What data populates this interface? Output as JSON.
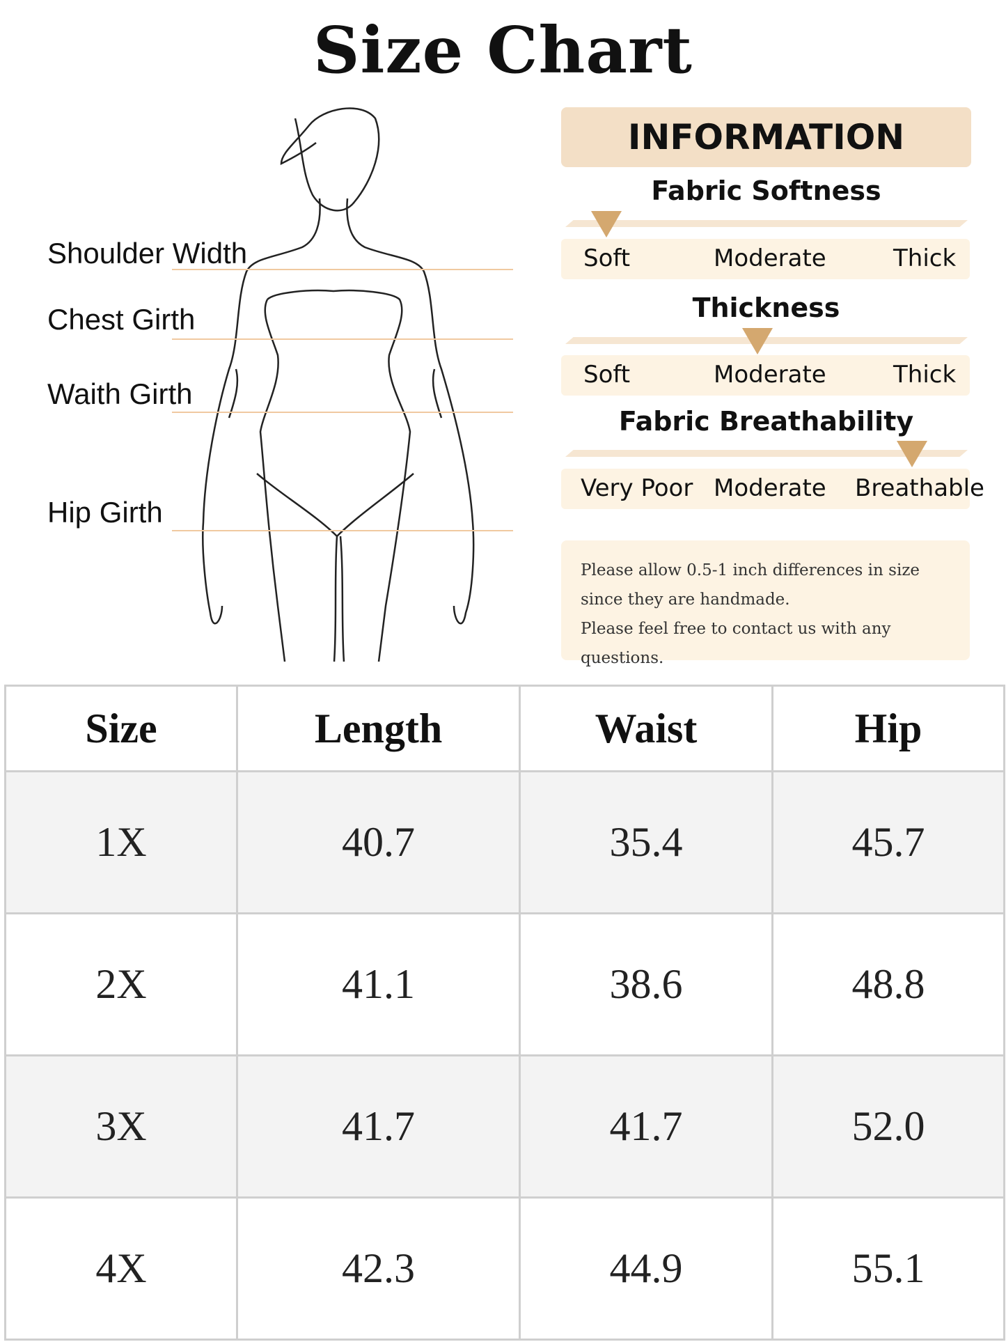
{
  "title": "Size Chart",
  "measure_labels": [
    "Shoulder Width",
    "Chest Girth",
    "Waith Girth",
    "Hip Girth"
  ],
  "info": {
    "header": "INFORMATION",
    "scales": [
      {
        "title": "Fabric Softness",
        "labels": [
          "Soft",
          "Moderate",
          "Thick"
        ],
        "selected": "Soft"
      },
      {
        "title": "Thickness",
        "labels": [
          "Soft",
          "Moderate",
          "Thick"
        ],
        "selected": "Moderate"
      },
      {
        "title": "Fabric Breathability",
        "labels": [
          "Very Poor",
          "Moderate",
          "Breathable"
        ],
        "selected": "Breathable"
      }
    ],
    "note": [
      "Please allow 0.5-1 inch differences in size",
      "since they are handmade.",
      "Please feel free to contact us with any questions."
    ]
  },
  "colors": {
    "accent": "#d4a86f",
    "header_bg": "#f3dfc6",
    "label_bg": "#fdf3e3",
    "line": "#f0c9a0"
  },
  "table": {
    "headers": [
      "Size",
      "Length",
      "Waist",
      "Hip"
    ],
    "rows": [
      [
        "1X",
        "40.7",
        "35.4",
        "45.7"
      ],
      [
        "2X",
        "41.1",
        "38.6",
        "48.8"
      ],
      [
        "3X",
        "41.7",
        "41.7",
        "52.0"
      ],
      [
        "4X",
        "42.3",
        "44.9",
        "55.1"
      ]
    ]
  }
}
